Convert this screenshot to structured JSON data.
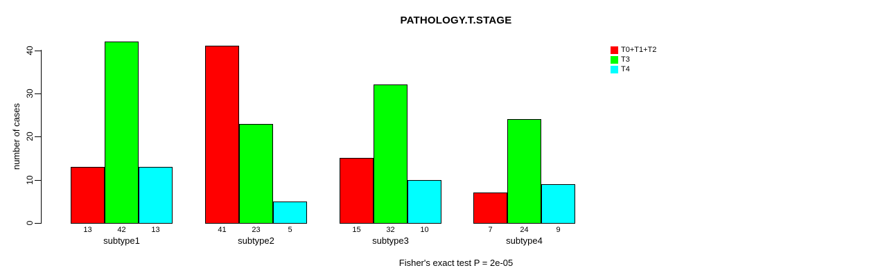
{
  "title": "PATHOLOGY.T.STAGE",
  "y_axis": {
    "label": "number of cases",
    "ticks": [
      0,
      10,
      20,
      30,
      40
    ]
  },
  "footer": "Fisher's exact test P = 2e-05",
  "legend": {
    "position": "top-right",
    "items": [
      {
        "label": "T0+T1+T2",
        "color": "#FF0000"
      },
      {
        "label": "T3",
        "color": "#00FF00"
      },
      {
        "label": "T4",
        "color": "#00FFFF"
      }
    ]
  },
  "chart_data": {
    "type": "bar",
    "title": "PATHOLOGY.T.STAGE",
    "xlabel": "",
    "ylabel": "number of cases",
    "ylim": [
      0,
      42
    ],
    "yticks": [
      0,
      10,
      20,
      30,
      40
    ],
    "grid": false,
    "legend_position": "top-right",
    "bar_value_labels": true,
    "categories": [
      "subtype1",
      "subtype2",
      "subtype3",
      "subtype4"
    ],
    "series": [
      {
        "name": "T0+T1+T2",
        "color": "#FF0000",
        "values": [
          13,
          41,
          15,
          7
        ]
      },
      {
        "name": "T3",
        "color": "#00FF00",
        "values": [
          42,
          23,
          32,
          24
        ]
      },
      {
        "name": "T4",
        "color": "#00FFFF",
        "values": [
          13,
          5,
          10,
          9
        ]
      }
    ],
    "annotation": "Fisher's exact test P = 2e-05"
  }
}
